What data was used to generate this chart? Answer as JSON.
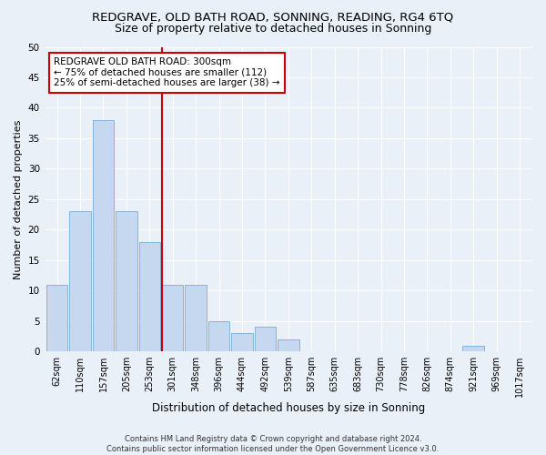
{
  "title": "REDGRAVE, OLD BATH ROAD, SONNING, READING, RG4 6TQ",
  "subtitle": "Size of property relative to detached houses in Sonning",
  "xlabel": "Distribution of detached houses by size in Sonning",
  "ylabel": "Number of detached properties",
  "categories": [
    "62sqm",
    "110sqm",
    "157sqm",
    "205sqm",
    "253sqm",
    "301sqm",
    "348sqm",
    "396sqm",
    "444sqm",
    "492sqm",
    "539sqm",
    "587sqm",
    "635sqm",
    "683sqm",
    "730sqm",
    "778sqm",
    "826sqm",
    "874sqm",
    "921sqm",
    "969sqm",
    "1017sqm"
  ],
  "values": [
    11,
    23,
    38,
    23,
    18,
    11,
    11,
    5,
    3,
    4,
    2,
    0,
    0,
    0,
    0,
    0,
    0,
    0,
    1,
    0,
    0
  ],
  "bar_color": "#c5d8f0",
  "bar_edge_color": "#7aadd4",
  "vline_index": 5,
  "vline_color": "#cc0000",
  "annotation_text": "REDGRAVE OLD BATH ROAD: 300sqm\n← 75% of detached houses are smaller (112)\n25% of semi-detached houses are larger (38) →",
  "annotation_box_color": "#ffffff",
  "annotation_box_edge_color": "#cc0000",
  "footer_line1": "Contains HM Land Registry data © Crown copyright and database right 2024.",
  "footer_line2": "Contains public sector information licensed under the Open Government Licence v3.0.",
  "ylim": [
    0,
    50
  ],
  "background_color": "#eaf0f8",
  "grid_color": "#ffffff",
  "title_fontsize": 9.5,
  "subtitle_fontsize": 9,
  "tick_fontsize": 7,
  "ylabel_fontsize": 8,
  "xlabel_fontsize": 8.5,
  "annotation_fontsize": 7.5
}
